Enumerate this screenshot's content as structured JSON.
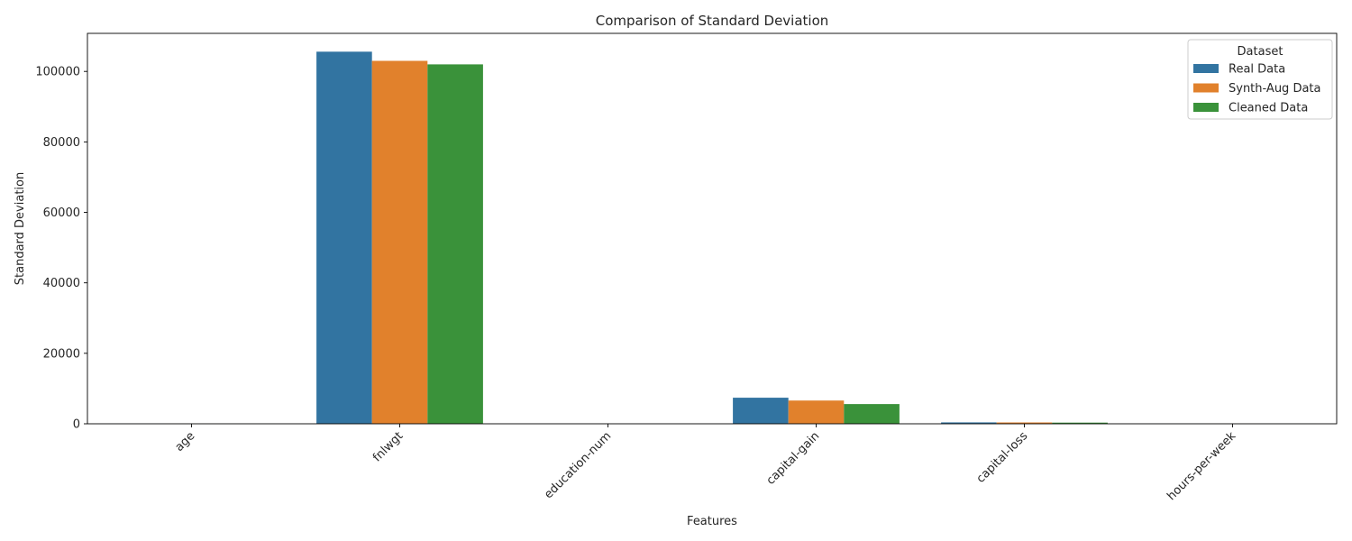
{
  "chart_data": {
    "type": "bar",
    "title": "Comparison of Standard Deviation",
    "xlabel": "Features",
    "ylabel": "Standard Deviation",
    "categories": [
      "age",
      "fnlwgt",
      "education-num",
      "capital-gain",
      "capital-loss",
      "hours-per-week"
    ],
    "ylim": [
      0,
      110800
    ],
    "yticks": [
      0,
      20000,
      40000,
      60000,
      80000,
      100000
    ],
    "ytick_labels": [
      "0",
      "20000",
      "40000",
      "60000",
      "80000",
      "100000"
    ],
    "grid": false,
    "legend": {
      "title": "Dataset",
      "placement": "top-right"
    },
    "series": [
      {
        "name": "Real Data",
        "color": "#3274a1",
        "values": [
          14,
          105600,
          3,
          7400,
          400,
          12
        ]
      },
      {
        "name": "Synth-Aug Data",
        "color": "#e1812c",
        "values": [
          14,
          103000,
          3,
          6600,
          380,
          12
        ]
      },
      {
        "name": "Cleaned Data",
        "color": "#3a923a",
        "values": [
          13,
          102000,
          3,
          5600,
          330,
          12
        ]
      }
    ]
  }
}
